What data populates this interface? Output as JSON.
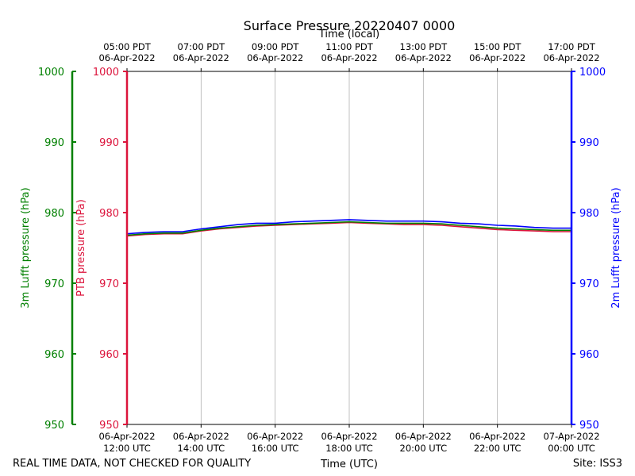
{
  "chart_data": {
    "type": "line",
    "title": "Surface Pressure 20220407 0000",
    "top_axis_label": "Time (local)",
    "xlabel": "Time (UTC)",
    "x_range_hours_utc": [
      12,
      24
    ],
    "top_ticks": [
      {
        "hour": 12,
        "line1": "05:00 PDT",
        "line2": "06-Apr-2022"
      },
      {
        "hour": 14,
        "line1": "07:00 PDT",
        "line2": "06-Apr-2022"
      },
      {
        "hour": 16,
        "line1": "09:00 PDT",
        "line2": "06-Apr-2022"
      },
      {
        "hour": 18,
        "line1": "11:00 PDT",
        "line2": "06-Apr-2022"
      },
      {
        "hour": 20,
        "line1": "13:00 PDT",
        "line2": "06-Apr-2022"
      },
      {
        "hour": 22,
        "line1": "15:00 PDT",
        "line2": "06-Apr-2022"
      },
      {
        "hour": 24,
        "line1": "17:00 PDT",
        "line2": "06-Apr-2022"
      }
    ],
    "bottom_ticks": [
      {
        "hour": 12,
        "line1": "06-Apr-2022",
        "line2": "12:00 UTC"
      },
      {
        "hour": 14,
        "line1": "06-Apr-2022",
        "line2": "14:00 UTC"
      },
      {
        "hour": 16,
        "line1": "06-Apr-2022",
        "line2": "16:00 UTC"
      },
      {
        "hour": 18,
        "line1": "06-Apr-2022",
        "line2": "18:00 UTC"
      },
      {
        "hour": 20,
        "line1": "06-Apr-2022",
        "line2": "20:00 UTC"
      },
      {
        "hour": 22,
        "line1": "06-Apr-2022",
        "line2": "22:00 UTC"
      },
      {
        "hour": 24,
        "line1": "07-Apr-2022",
        "line2": "00:00 UTC"
      }
    ],
    "y_axes": [
      {
        "id": "ptb",
        "label": "PTB pressure (hPa)",
        "color": "#dc143c",
        "ylim": [
          950,
          1000
        ],
        "ticks": [
          950,
          960,
          970,
          980,
          990,
          1000
        ]
      },
      {
        "id": "lufft3m",
        "label": "3m Lufft pressure (hPa)",
        "color": "#008000",
        "ylim": [
          950,
          1000
        ],
        "ticks": [
          950,
          960,
          970,
          980,
          990,
          1000
        ]
      },
      {
        "id": "lufft2m",
        "label": "2m Lufft pressure (hPa)",
        "color": "#0000ff",
        "ylim": [
          950,
          1000
        ],
        "ticks": [
          950,
          960,
          970,
          980,
          990,
          1000
        ]
      }
    ],
    "series": [
      {
        "name": "PTB pressure",
        "axis": "ptb",
        "color": "#dc143c",
        "x": [
          12.0,
          12.5,
          13.0,
          13.5,
          14.0,
          14.5,
          15.0,
          15.5,
          16.0,
          16.5,
          17.0,
          17.5,
          18.0,
          18.5,
          19.0,
          19.5,
          20.0,
          20.5,
          21.0,
          21.5,
          22.0,
          22.5,
          23.0,
          23.5,
          24.0
        ],
        "values": [
          976.7,
          976.9,
          977.0,
          977.0,
          977.4,
          977.7,
          977.9,
          978.1,
          978.2,
          978.3,
          978.4,
          978.5,
          978.6,
          978.5,
          978.4,
          978.3,
          978.3,
          978.2,
          978.0,
          977.8,
          977.6,
          977.5,
          977.4,
          977.3,
          977.3
        ]
      },
      {
        "name": "3m Lufft pressure",
        "axis": "lufft3m",
        "color": "#008000",
        "x": [
          12.0,
          12.5,
          13.0,
          13.5,
          14.0,
          14.5,
          15.0,
          15.5,
          16.0,
          16.5,
          17.0,
          17.5,
          18.0,
          18.5,
          19.0,
          19.5,
          20.0,
          20.5,
          21.0,
          21.5,
          22.0,
          22.5,
          23.0,
          23.5,
          24.0
        ],
        "values": [
          976.8,
          977.0,
          977.1,
          977.1,
          977.5,
          977.8,
          978.0,
          978.2,
          978.3,
          978.4,
          978.5,
          978.6,
          978.7,
          978.6,
          978.5,
          978.5,
          978.5,
          978.4,
          978.2,
          978.0,
          977.8,
          977.7,
          977.6,
          977.5,
          977.5
        ]
      },
      {
        "name": "2m Lufft pressure",
        "axis": "lufft2m",
        "color": "#0000ff",
        "x": [
          12.0,
          12.5,
          13.0,
          13.5,
          14.0,
          14.5,
          15.0,
          15.5,
          16.0,
          16.5,
          17.0,
          17.5,
          18.0,
          18.5,
          19.0,
          19.5,
          20.0,
          20.5,
          21.0,
          21.5,
          22.0,
          22.5,
          23.0,
          23.5,
          24.0
        ],
        "values": [
          977.0,
          977.2,
          977.3,
          977.3,
          977.7,
          978.0,
          978.3,
          978.5,
          978.5,
          978.7,
          978.8,
          978.9,
          979.0,
          978.9,
          978.8,
          978.8,
          978.8,
          978.7,
          978.5,
          978.4,
          978.2,
          978.1,
          977.9,
          977.8,
          977.8
        ]
      }
    ],
    "grid": "vertical",
    "footer_left": "REAL TIME DATA, NOT CHECKED FOR QUALITY",
    "footer_right": "Site: ISS3"
  }
}
